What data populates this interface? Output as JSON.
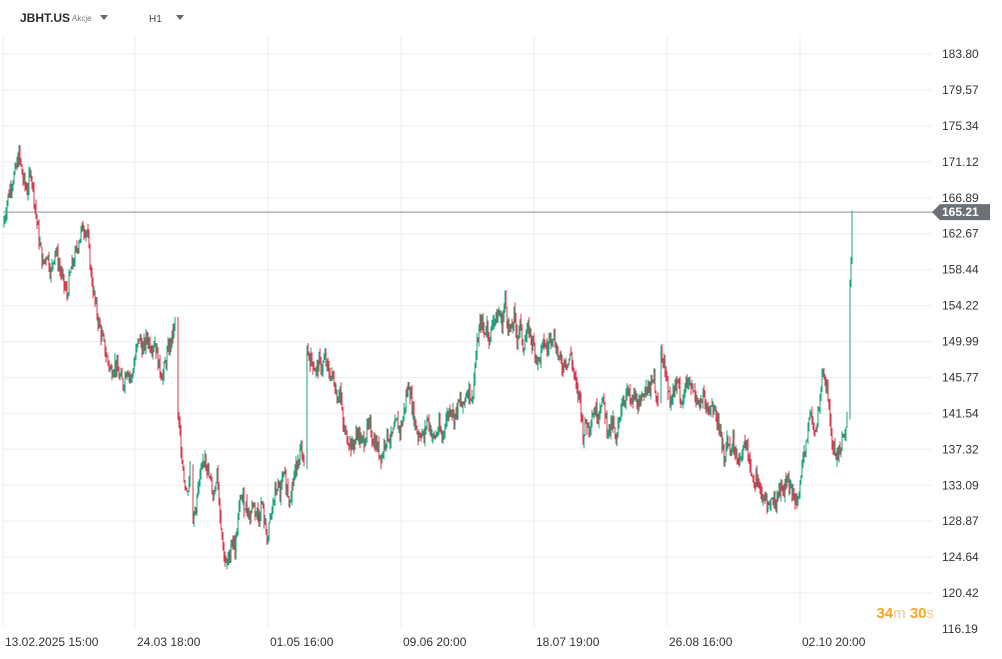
{
  "header": {
    "symbol": "JBHT.US",
    "market": "Akcje",
    "timeframe": "H1"
  },
  "timer": {
    "minutes": "34",
    "minutes_unit": "m",
    "seconds": "30",
    "seconds_unit": "s"
  },
  "colors": {
    "up": "#1aa37a",
    "down": "#d9374b",
    "price_line": "#8a8f94",
    "price_tag": "#6b7177",
    "grid": "#eceef0",
    "timer": "#f5a623"
  },
  "chart_data": {
    "type": "candlestick",
    "symbol": "JBHT.US",
    "interval": "H1",
    "current_price": 165.21,
    "y_ticks": [
      183.8,
      179.57,
      175.34,
      171.12,
      166.89,
      162.67,
      158.44,
      154.22,
      149.99,
      145.77,
      141.54,
      137.32,
      133.09,
      128.87,
      124.64,
      120.42,
      116.19
    ],
    "ylim": [
      116.19,
      183.8
    ],
    "x_ticks": [
      "13.02.2025  15:00",
      "24.03  18:00",
      "01.05  16:00",
      "09.06  20:00",
      "18.07  19:00",
      "26.08  16:00",
      "02.10  20:00"
    ],
    "close_path": [
      [
        0,
        163.5
      ],
      [
        4,
        166.5
      ],
      [
        8,
        168.5
      ],
      [
        12,
        169.8
      ],
      [
        16,
        172.0
      ],
      [
        20,
        169.0
      ],
      [
        24,
        167.8
      ],
      [
        28,
        170.0
      ],
      [
        32,
        166.0
      ],
      [
        36,
        162.0
      ],
      [
        40,
        159.0
      ],
      [
        44,
        160.5
      ],
      [
        48,
        158.0
      ],
      [
        52,
        161.0
      ],
      [
        56,
        159.0
      ],
      [
        60,
        157.0
      ],
      [
        64,
        155.5
      ],
      [
        68,
        158.5
      ],
      [
        72,
        160.0
      ],
      [
        76,
        162.0
      ],
      [
        80,
        163.5
      ],
      [
        84,
        163.0
      ],
      [
        88,
        158.0
      ],
      [
        92,
        154.5
      ],
      [
        96,
        152.0
      ],
      [
        100,
        150.0
      ],
      [
        104,
        148.0
      ],
      [
        108,
        146.5
      ],
      [
        112,
        147.5
      ],
      [
        116,
        146.0
      ],
      [
        120,
        145.0
      ],
      [
        124,
        147.0
      ],
      [
        128,
        145.5
      ],
      [
        132,
        148.0
      ],
      [
        136,
        150.5
      ],
      [
        140,
        149.0
      ],
      [
        144,
        150.5
      ],
      [
        148,
        149.5
      ],
      [
        152,
        150.0
      ],
      [
        156,
        147.0
      ],
      [
        160,
        146.0
      ],
      [
        164,
        148.5
      ],
      [
        168,
        150.0
      ],
      [
        172,
        152.0
      ],
      [
        175,
        141.0
      ],
      [
        178,
        138.0
      ],
      [
        181,
        134.0
      ],
      [
        184,
        132.0
      ],
      [
        187,
        135.0
      ],
      [
        190,
        129.0
      ],
      [
        193,
        131.0
      ],
      [
        196,
        133.0
      ],
      [
        199,
        135.0
      ],
      [
        202,
        137.0
      ],
      [
        205,
        134.5
      ],
      [
        208,
        133.0
      ],
      [
        211,
        132.0
      ],
      [
        214,
        135.0
      ],
      [
        217,
        130.0
      ],
      [
        220,
        126.0
      ],
      [
        223,
        123.5
      ],
      [
        226,
        124.5
      ],
      [
        229,
        127.0
      ],
      [
        232,
        125.5
      ],
      [
        235,
        129.0
      ],
      [
        238,
        132.0
      ],
      [
        241,
        131.0
      ],
      [
        244,
        130.5
      ],
      [
        247,
        129.5
      ],
      [
        250,
        131.0
      ],
      [
        253,
        130.0
      ],
      [
        256,
        129.5
      ],
      [
        259,
        131.0
      ],
      [
        262,
        128.0
      ],
      [
        265,
        127.0
      ],
      [
        268,
        129.5
      ],
      [
        271,
        131.5
      ],
      [
        274,
        133.0
      ],
      [
        277,
        132.0
      ],
      [
        280,
        134.0
      ],
      [
        283,
        133.5
      ],
      [
        286,
        131.5
      ],
      [
        289,
        133.0
      ],
      [
        292,
        134.5
      ],
      [
        295,
        136.5
      ],
      [
        298,
        137.0
      ],
      [
        301,
        135.0
      ],
      [
        304,
        149.0
      ],
      [
        307,
        148.0
      ],
      [
        310,
        147.5
      ],
      [
        313,
        146.5
      ],
      [
        316,
        147.5
      ],
      [
        319,
        147.0
      ],
      [
        322,
        148.0
      ],
      [
        325,
        146.5
      ],
      [
        328,
        146.0
      ],
      [
        331,
        145.5
      ],
      [
        334,
        143.5
      ],
      [
        337,
        144.5
      ],
      [
        340,
        140.0
      ],
      [
        343,
        139.0
      ],
      [
        346,
        138.5
      ],
      [
        349,
        137.5
      ],
      [
        352,
        138.5
      ],
      [
        355,
        139.5
      ],
      [
        358,
        138.0
      ],
      [
        361,
        138.5
      ],
      [
        364,
        139.5
      ],
      [
        367,
        140.0
      ],
      [
        370,
        138.5
      ],
      [
        373,
        138.0
      ],
      [
        376,
        137.0
      ],
      [
        379,
        136.5
      ],
      [
        382,
        138.5
      ],
      [
        385,
        139.0
      ],
      [
        388,
        138.5
      ],
      [
        391,
        139.5
      ],
      [
        394,
        140.5
      ],
      [
        397,
        139.5
      ],
      [
        400,
        141.0
      ],
      [
        403,
        143.5
      ],
      [
        406,
        145.0
      ],
      [
        409,
        142.5
      ],
      [
        412,
        140.5
      ],
      [
        415,
        139.0
      ],
      [
        418,
        139.5
      ],
      [
        421,
        138.5
      ],
      [
        424,
        141.0
      ],
      [
        427,
        140.0
      ],
      [
        430,
        138.5
      ],
      [
        433,
        139.0
      ],
      [
        436,
        140.0
      ],
      [
        439,
        138.5
      ],
      [
        442,
        140.5
      ],
      [
        445,
        141.5
      ],
      [
        448,
        142.5
      ],
      [
        451,
        141.0
      ],
      [
        454,
        142.0
      ],
      [
        457,
        143.0
      ],
      [
        460,
        142.0
      ],
      [
        463,
        144.0
      ],
      [
        466,
        144.5
      ],
      [
        469,
        143.0
      ],
      [
        472,
        147.0
      ],
      [
        475,
        150.5
      ],
      [
        478,
        152.5
      ],
      [
        481,
        151.0
      ],
      [
        484,
        152.0
      ],
      [
        487,
        150.0
      ],
      [
        490,
        153.0
      ],
      [
        493,
        152.5
      ],
      [
        496,
        153.5
      ],
      [
        499,
        152.0
      ],
      [
        502,
        155.0
      ],
      [
        505,
        152.0
      ],
      [
        508,
        151.0
      ],
      [
        511,
        153.0
      ],
      [
        514,
        150.5
      ],
      [
        517,
        152.0
      ],
      [
        520,
        149.5
      ],
      [
        523,
        150.5
      ],
      [
        526,
        151.5
      ],
      [
        529,
        150.0
      ],
      [
        532,
        149.0
      ],
      [
        535,
        147.5
      ],
      [
        538,
        148.5
      ],
      [
        541,
        150.0
      ],
      [
        544,
        149.0
      ],
      [
        547,
        150.5
      ],
      [
        550,
        151.0
      ],
      [
        553,
        149.5
      ],
      [
        556,
        148.0
      ],
      [
        559,
        147.0
      ],
      [
        562,
        148.0
      ],
      [
        565,
        147.5
      ],
      [
        568,
        148.5
      ],
      [
        571,
        146.0
      ],
      [
        574,
        144.0
      ],
      [
        577,
        143.5
      ],
      [
        580,
        139.0
      ],
      [
        583,
        140.5
      ],
      [
        586,
        140.0
      ],
      [
        589,
        141.5
      ],
      [
        592,
        142.0
      ],
      [
        595,
        141.5
      ],
      [
        598,
        143.0
      ],
      [
        601,
        142.5
      ],
      [
        604,
        140.0
      ],
      [
        607,
        139.5
      ],
      [
        610,
        140.5
      ],
      [
        613,
        137.5
      ],
      [
        616,
        141.0
      ],
      [
        619,
        143.0
      ],
      [
        622,
        143.5
      ],
      [
        625,
        144.0
      ],
      [
        628,
        142.5
      ],
      [
        631,
        143.5
      ],
      [
        634,
        143.0
      ],
      [
        637,
        142.0
      ],
      [
        640,
        143.5
      ],
      [
        643,
        145.5
      ],
      [
        646,
        144.0
      ],
      [
        649,
        146.0
      ],
      [
        652,
        145.0
      ],
      [
        655,
        142.0
      ],
      [
        658,
        149.0
      ],
      [
        661,
        147.5
      ],
      [
        664,
        145.0
      ],
      [
        667,
        143.5
      ],
      [
        670,
        144.0
      ],
      [
        673,
        145.0
      ],
      [
        676,
        144.5
      ],
      [
        679,
        143.0
      ],
      [
        682,
        144.5
      ],
      [
        685,
        145.0
      ],
      [
        688,
        144.5
      ],
      [
        691,
        144.0
      ],
      [
        694,
        143.5
      ],
      [
        697,
        142.5
      ],
      [
        700,
        143.5
      ],
      [
        703,
        142.0
      ],
      [
        706,
        141.5
      ],
      [
        709,
        143.0
      ],
      [
        712,
        141.5
      ],
      [
        715,
        140.0
      ],
      [
        718,
        139.5
      ],
      [
        721,
        136.0
      ],
      [
        724,
        138.5
      ],
      [
        727,
        137.5
      ],
      [
        730,
        138.0
      ],
      [
        733,
        137.0
      ],
      [
        736,
        136.5
      ],
      [
        739,
        136.0
      ],
      [
        742,
        138.5
      ],
      [
        745,
        137.0
      ],
      [
        748,
        135.0
      ],
      [
        751,
        133.5
      ],
      [
        754,
        134.5
      ],
      [
        757,
        132.5
      ],
      [
        760,
        131.0
      ],
      [
        763,
        131.5
      ],
      [
        766,
        130.5
      ],
      [
        769,
        131.5
      ],
      [
        772,
        131.0
      ],
      [
        775,
        132.0
      ],
      [
        778,
        133.0
      ],
      [
        781,
        132.5
      ],
      [
        784,
        134.0
      ],
      [
        787,
        132.5
      ],
      [
        790,
        132.0
      ],
      [
        793,
        131.5
      ],
      [
        796,
        133.0
      ],
      [
        799,
        134.5
      ],
      [
        802,
        137.0
      ],
      [
        805,
        140.0
      ],
      [
        808,
        141.5
      ],
      [
        811,
        139.0
      ],
      [
        814,
        140.0
      ],
      [
        817,
        144.5
      ],
      [
        820,
        146.5
      ],
      [
        823,
        145.0
      ],
      [
        826,
        142.5
      ],
      [
        829,
        138.0
      ],
      [
        832,
        137.0
      ],
      [
        835,
        136.5
      ],
      [
        838,
        138.0
      ],
      [
        841,
        139.0
      ],
      [
        844,
        140.5
      ],
      [
        847,
        157.0
      ],
      [
        848,
        160.0
      ],
      [
        849,
        165.21
      ]
    ]
  }
}
